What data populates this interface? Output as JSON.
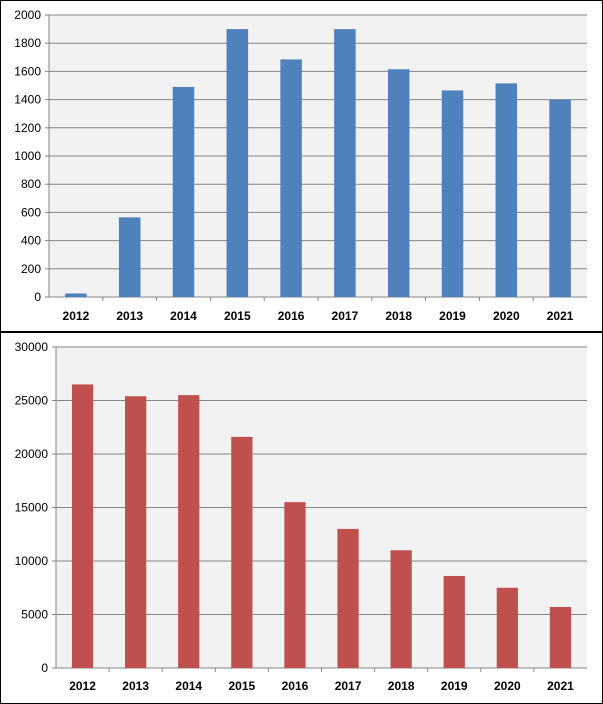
{
  "chart_data": [
    {
      "type": "bar",
      "title": "",
      "xlabel": "",
      "ylabel": "",
      "categories": [
        "2012",
        "2013",
        "2014",
        "2015",
        "2016",
        "2017",
        "2018",
        "2019",
        "2020",
        "2021"
      ],
      "values": [
        25,
        565,
        1490,
        1900,
        1685,
        1900,
        1615,
        1465,
        1515,
        1400
      ],
      "ylim": [
        0,
        2000
      ],
      "yticks": [
        "0",
        "200",
        "400",
        "600",
        "800",
        "1000",
        "1200",
        "1400",
        "1600",
        "1800",
        "2000"
      ],
      "grid": true,
      "legend": "none",
      "colors": {
        "bar": "#4F81BD",
        "plot_bg": "#F2F2F2",
        "grid": "#868686"
      }
    },
    {
      "type": "bar",
      "title": "",
      "xlabel": "",
      "ylabel": "",
      "categories": [
        "2012",
        "2013",
        "2014",
        "2015",
        "2016",
        "2017",
        "2018",
        "2019",
        "2020",
        "2021"
      ],
      "values": [
        26500,
        25400,
        25500,
        21600,
        15500,
        13000,
        11000,
        8600,
        7500,
        5700
      ],
      "ylim": [
        0,
        30000
      ],
      "yticks": [
        "0",
        "5000",
        "10000",
        "15000",
        "20000",
        "25000",
        "30000"
      ],
      "grid": true,
      "legend": "none",
      "colors": {
        "bar": "#C0504D",
        "plot_bg": "#F2F2F2",
        "grid": "#868686"
      }
    }
  ]
}
